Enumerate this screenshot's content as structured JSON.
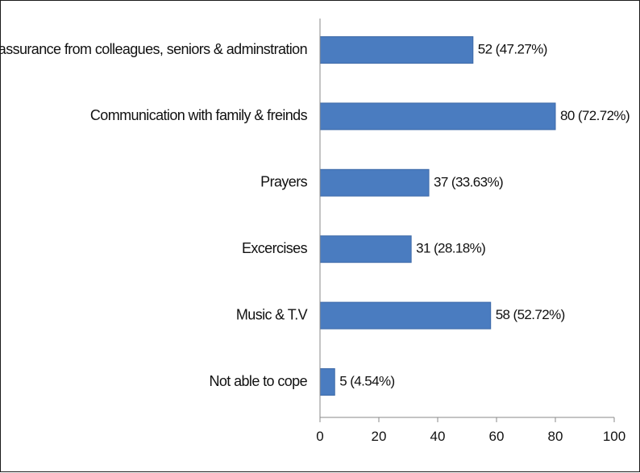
{
  "chart_data": {
    "type": "bar",
    "orientation": "horizontal",
    "categories": [
      "Reassurance from colleagues, seniors & adminstration",
      "Communication with family & freinds",
      "Prayers",
      "Excercises",
      "Music & T.V",
      "Not able to cope"
    ],
    "values": [
      52,
      80,
      37,
      31,
      58,
      5
    ],
    "data_labels": [
      "52 (47.27%)",
      "80 (72.72%)",
      "37 (33.63%)",
      "31 (28.18%)",
      "58 (52.72%)",
      "5 (4.54%)"
    ],
    "xlim": [
      0,
      100
    ],
    "xticks": [
      0,
      20,
      40,
      60,
      80,
      100
    ],
    "grid": false,
    "legend": "none",
    "bar_color": "#4a7cc0",
    "bar_edge_color": "#3e6aa8",
    "title": "",
    "xlabel": "",
    "ylabel": ""
  }
}
